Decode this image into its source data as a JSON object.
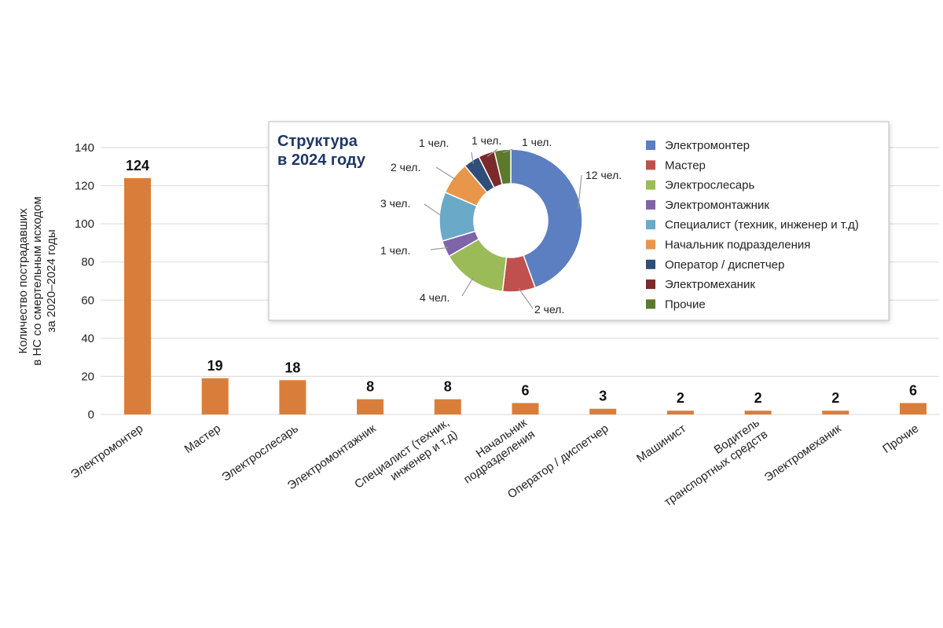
{
  "chart_data": [
    {
      "type": "bar",
      "title": "",
      "ylabel": [
        "Количество пострадавших",
        "в НС со смертельным исходом",
        "за 2020–2024 годы"
      ],
      "xlabel": "",
      "ylim": [
        0,
        140
      ],
      "yticks": [
        0,
        20,
        40,
        60,
        80,
        100,
        120,
        140
      ],
      "grid": true,
      "bar_color": "#d97e3a",
      "categories": [
        [
          "Электромонтер"
        ],
        [
          "Мастер"
        ],
        [
          "Электрослесарь"
        ],
        [
          "Электромонтажник"
        ],
        [
          "Специалист (техник,",
          "инженер и т.д)"
        ],
        [
          "Начальник",
          "подразделения"
        ],
        [
          "Оператор / диспетчер"
        ],
        [
          "Машинист"
        ],
        [
          "Водитель",
          "транспортных средств"
        ],
        [
          "Электромеханик"
        ],
        [
          "Прочие"
        ]
      ],
      "values": [
        124,
        19,
        18,
        8,
        8,
        6,
        3,
        2,
        2,
        2,
        6
      ]
    },
    {
      "type": "pie",
      "variant": "donut",
      "title": [
        "Структура",
        "в 2024 году"
      ],
      "legend_position": "right",
      "labels": [
        "Электромонтер",
        "Мастер",
        "Электрослесарь",
        "Электромонтажник",
        "Специалист (техник, инженер и т.д)",
        "Начальник подразделения",
        "Оператор / диспетчер",
        "Электромеханик",
        "Прочие"
      ],
      "values": [
        12,
        2,
        4,
        1,
        3,
        2,
        1,
        1,
        1
      ],
      "slice_labels": [
        "12 чел.",
        "2 чел.",
        "4 чел.",
        "1 чел.",
        "3 чел.",
        "2 чел.",
        "1 чел.",
        "1 чел.",
        "1 чел."
      ],
      "colors": [
        "#5b7fc0",
        "#c0504d",
        "#9bbb59",
        "#7f64a8",
        "#6aaac8",
        "#e8964a",
        "#2f4e7a",
        "#7a2a2a",
        "#5c7a2e"
      ]
    }
  ]
}
